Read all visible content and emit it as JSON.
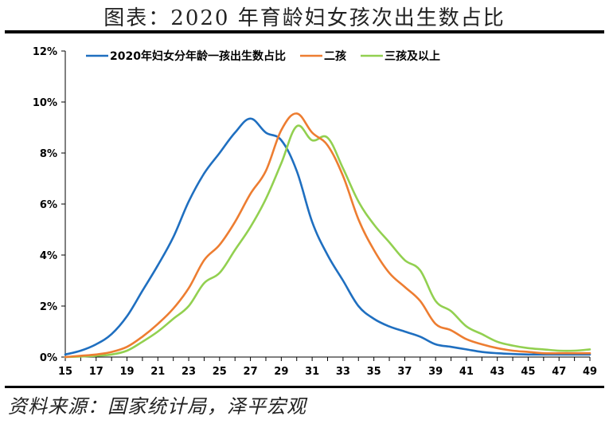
{
  "title": "图表：2020 年育龄妇女孩次出生数占比",
  "source": "资料来源：国家统计局，泽平宏观",
  "chart_data": {
    "type": "line",
    "ylim": [
      0,
      12
    ],
    "ytick_values": [
      0,
      2,
      4,
      6,
      8,
      10,
      12
    ],
    "ytick_labels": [
      "0%",
      "2%",
      "4%",
      "6%",
      "8%",
      "10%",
      "12%"
    ],
    "xlim": [
      15,
      49
    ],
    "xtick_labels": [
      "15",
      "17",
      "19",
      "21",
      "23",
      "25",
      "27",
      "29",
      "31",
      "33",
      "35",
      "37",
      "39",
      "41",
      "43",
      "45",
      "47",
      "49"
    ],
    "legend_position": "top",
    "x": [
      15,
      16,
      17,
      18,
      19,
      20,
      21,
      22,
      23,
      24,
      25,
      26,
      27,
      28,
      29,
      30,
      31,
      32,
      33,
      34,
      35,
      36,
      37,
      38,
      39,
      40,
      41,
      42,
      43,
      44,
      45,
      46,
      47,
      48,
      49
    ],
    "series": [
      {
        "name": "2020年妇女分年龄一孩出生数占比",
        "color": "#1F6FC0",
        "values": [
          0.1,
          0.25,
          0.5,
          0.9,
          1.6,
          2.6,
          3.6,
          4.7,
          6.1,
          7.2,
          8.0,
          8.8,
          9.35,
          8.8,
          8.5,
          7.3,
          5.3,
          4.0,
          3.0,
          2.0,
          1.5,
          1.2,
          1.0,
          0.8,
          0.5,
          0.4,
          0.3,
          0.2,
          0.15,
          0.12,
          0.1,
          0.1,
          0.1,
          0.1,
          0.1
        ]
      },
      {
        "name": "二孩",
        "color": "#ED7D31",
        "values": [
          0.0,
          0.05,
          0.1,
          0.2,
          0.4,
          0.8,
          1.3,
          1.9,
          2.7,
          3.8,
          4.4,
          5.3,
          6.4,
          7.3,
          8.9,
          9.55,
          8.8,
          8.3,
          7.1,
          5.4,
          4.2,
          3.3,
          2.75,
          2.2,
          1.3,
          1.05,
          0.7,
          0.5,
          0.35,
          0.25,
          0.2,
          0.15,
          0.15,
          0.15,
          0.15
        ]
      },
      {
        "name": "三孩及以上",
        "color": "#92D050",
        "values": [
          0.0,
          0.02,
          0.05,
          0.1,
          0.25,
          0.6,
          1.0,
          1.5,
          2.0,
          2.9,
          3.3,
          4.2,
          5.1,
          6.2,
          7.6,
          9.05,
          8.5,
          8.6,
          7.4,
          6.1,
          5.2,
          4.5,
          3.8,
          3.4,
          2.2,
          1.8,
          1.2,
          0.9,
          0.6,
          0.45,
          0.35,
          0.3,
          0.25,
          0.25,
          0.3
        ]
      }
    ]
  }
}
